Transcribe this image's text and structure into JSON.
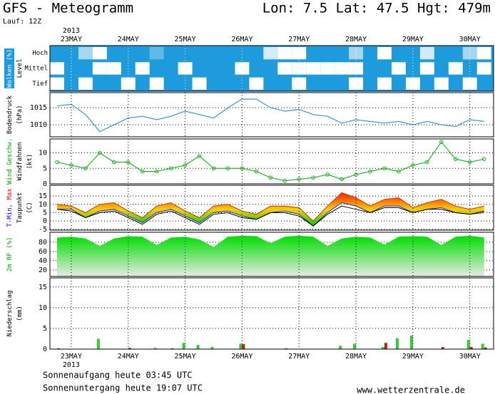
{
  "header": {
    "title": "GFS - Meteogramm",
    "location": "Lon: 7.5 Lat: 47.5 Hgt: 479m",
    "run": "Lauf: 12Z"
  },
  "footer": {
    "sunrise": "Sonnenaufgang heute 03:45 UTC",
    "sunset": "Sonnenuntergang heute 19:07 UTC",
    "source": "www.wetterzentrale.de"
  },
  "chart_data": [
    {
      "type": "heatmap",
      "year": "2013",
      "background": "#1e9bdc",
      "cell_color": "#ffffff",
      "ylabel": [
        [
          {
            "text": "Wolken (%)",
            "color": "#ffffff"
          }
        ],
        [
          {
            "text": "Level",
            "color": "#000000"
          }
        ]
      ],
      "categories": [
        "Hoch",
        "Mittel",
        "Tief"
      ],
      "x": [
        -6,
        0,
        6,
        12,
        18,
        24,
        30,
        36,
        42,
        48,
        54,
        60,
        66,
        72,
        78,
        84,
        90,
        96,
        102,
        108,
        114,
        120,
        126,
        132,
        138,
        144,
        150,
        156,
        162,
        168,
        174
      ],
      "xlim": [
        -9,
        178
      ],
      "xticks": [
        {
          "value": 0,
          "label": "23MAY"
        },
        {
          "value": 24,
          "label": "24MAY"
        },
        {
          "value": 48,
          "label": "25MAY"
        },
        {
          "value": 72,
          "label": "26MAY"
        },
        {
          "value": 96,
          "label": "27MAY"
        },
        {
          "value": 120,
          "label": "28MAY"
        },
        {
          "value": 144,
          "label": "29MAY"
        },
        {
          "value": 168,
          "label": "30MAY"
        }
      ],
      "series": [
        {
          "values": [
            0,
            0,
            60,
            100,
            0,
            0,
            0,
            30,
            0,
            0,
            0,
            0,
            0,
            0,
            0,
            80,
            100,
            100,
            0,
            0,
            0,
            60,
            0,
            100,
            0,
            0,
            80,
            0,
            0,
            60,
            100
          ]
        },
        {
          "values": [
            100,
            0,
            0,
            100,
            100,
            0,
            100,
            0,
            0,
            100,
            0,
            0,
            0,
            100,
            0,
            0,
            100,
            100,
            100,
            100,
            100,
            100,
            0,
            0,
            100,
            0,
            100,
            0,
            100,
            0,
            100
          ]
        },
        {
          "values": [
            100,
            0,
            100,
            0,
            0,
            100,
            0,
            100,
            0,
            0,
            100,
            0,
            0,
            0,
            100,
            0,
            0,
            100,
            0,
            0,
            0,
            100,
            0,
            100,
            0,
            100,
            0,
            100,
            0,
            100,
            0
          ]
        }
      ]
    },
    {
      "type": "line",
      "color": "#3399dd",
      "ylabel": [
        [
          {
            "text": "Bodendruck",
            "color": "#000000"
          }
        ],
        [
          {
            "text": "(hPa)",
            "color": "#000000"
          }
        ]
      ],
      "x": [
        -6,
        0,
        6,
        12,
        18,
        24,
        30,
        36,
        42,
        48,
        54,
        60,
        66,
        72,
        78,
        84,
        90,
        96,
        102,
        108,
        114,
        120,
        126,
        132,
        138,
        144,
        150,
        156,
        162,
        168,
        174
      ],
      "xlim": [
        -9,
        178
      ],
      "xticks": [
        0,
        24,
        48,
        72,
        96,
        120,
        144,
        168
      ],
      "ylim": [
        1006.5,
        1019.4
      ],
      "yticks": [
        1010,
        1015
      ],
      "values": [
        1015.5,
        1016,
        1013,
        1008,
        1010,
        1012,
        1012.5,
        1011.5,
        1012.5,
        1014,
        1013,
        1012,
        1015,
        1017.5,
        1017.5,
        1015,
        1014,
        1014.5,
        1013,
        1012.5,
        1010.5,
        1011.5,
        1011,
        1010.5,
        1011,
        1010,
        1011,
        1010,
        1009.5,
        1011.5,
        1011
      ]
    },
    {
      "type": "line",
      "color": "#22bb22",
      "markers": true,
      "ylabel": [
        [
          {
            "text": "Wind Geschw.",
            "color": "#00aa00"
          }
        ],
        [
          {
            "text": "Windfahnen",
            "color": "#000000"
          }
        ],
        [
          {
            "text": "(kt)",
            "color": "#000000"
          }
        ]
      ],
      "x": [
        -6,
        0,
        6,
        12,
        18,
        24,
        30,
        36,
        42,
        48,
        54,
        60,
        66,
        72,
        78,
        84,
        90,
        96,
        102,
        108,
        114,
        120,
        126,
        132,
        138,
        144,
        150,
        156,
        162,
        168,
        174
      ],
      "xlim": [
        -9,
        178
      ],
      "xticks": [
        0,
        24,
        48,
        72,
        96,
        120,
        144,
        168
      ],
      "ylim": [
        0,
        14.5
      ],
      "yticks": [
        0,
        5,
        10
      ],
      "values": [
        7,
        6,
        5,
        10,
        7,
        7,
        4,
        4,
        5,
        6,
        9,
        5,
        5,
        5,
        4,
        2,
        1,
        1.5,
        2,
        3,
        1.5,
        3,
        4,
        5,
        4,
        6,
        7,
        13.5,
        8,
        7,
        8
      ]
    },
    {
      "type": "band",
      "band_colors": [
        "#ff2200",
        "#ffcc00",
        "#00cc00"
      ],
      "ylabel": [
        [
          {
            "text": "T-Min,",
            "color": "#0000ff"
          },
          {
            "text": "Max",
            "color": "#ff0000"
          }
        ],
        [
          {
            "text": "Taupunkt",
            "color": "#000000"
          }
        ],
        [
          {
            "text": "(C)",
            "color": "#000000"
          }
        ]
      ],
      "x": [
        -6,
        0,
        6,
        12,
        18,
        24,
        30,
        36,
        42,
        48,
        54,
        60,
        66,
        72,
        78,
        84,
        90,
        96,
        102,
        108,
        114,
        120,
        126,
        132,
        138,
        144,
        150,
        156,
        162,
        168,
        174
      ],
      "xlim": [
        -9,
        178
      ],
      "xticks": [
        0,
        24,
        48,
        72,
        96,
        120,
        144,
        168
      ],
      "ylim": [
        -5.5,
        21.5
      ],
      "yticks": [
        -5,
        0,
        5,
        10,
        15
      ],
      "series": [
        {
          "color": "#cc3300",
          "values": [
            10,
            9,
            5,
            10,
            11,
            6,
            2,
            9,
            11,
            6,
            2,
            9,
            10,
            6,
            4,
            9,
            9,
            8,
            0,
            9,
            17,
            14,
            9,
            13,
            14,
            8,
            11,
            13,
            9,
            7,
            9
          ]
        },
        {
          "color": "#0033cc",
          "values": [
            7,
            7,
            2,
            6,
            7,
            3,
            -1,
            5,
            7,
            3,
            -1,
            5,
            6,
            3,
            1,
            5,
            6,
            4,
            -3,
            5,
            11,
            9,
            5,
            9,
            9,
            5,
            7,
            8,
            5,
            4,
            5
          ]
        },
        {
          "color": "#000000",
          "values": [
            7,
            6,
            2,
            5,
            6,
            2,
            -2,
            4,
            6,
            2,
            -2,
            4,
            5,
            2,
            1,
            5,
            5,
            3,
            -3,
            4,
            9,
            7,
            5,
            8,
            8,
            5,
            7,
            7,
            5,
            4,
            6
          ]
        }
      ]
    },
    {
      "type": "area",
      "fill_colors": [
        "#00dd00",
        "#e6ebe6"
      ],
      "ylabel": [
        [
          {
            "text": "2m RF (%)",
            "color": "#00aa00"
          }
        ]
      ],
      "x": [
        -6,
        0,
        6,
        12,
        18,
        24,
        30,
        36,
        42,
        48,
        54,
        60,
        66,
        72,
        78,
        84,
        90,
        96,
        102,
        108,
        114,
        120,
        126,
        132,
        138,
        144,
        150,
        156,
        162,
        168,
        174
      ],
      "xlim": [
        -9,
        178
      ],
      "xticks": [
        0,
        24,
        48,
        72,
        96,
        120,
        144,
        168
      ],
      "ylim": [
        6,
        101.5
      ],
      "yticks": [
        20,
        40,
        60,
        80
      ],
      "values": [
        90,
        92,
        88,
        72,
        88,
        93,
        92,
        74,
        90,
        92,
        86,
        70,
        92,
        94,
        93,
        78,
        92,
        94,
        92,
        72,
        88,
        92,
        90,
        75,
        92,
        93,
        92,
        74,
        92,
        94,
        90
      ]
    },
    {
      "type": "bar",
      "year": "2013",
      "ylabel": [
        [
          {
            "text": "Niederschlag",
            "color": "#000000"
          }
        ],
        [
          {
            "text": "(mm)",
            "color": "#000000"
          }
        ]
      ],
      "x": [
        -6,
        0,
        6,
        12,
        18,
        24,
        30,
        36,
        42,
        48,
        54,
        60,
        66,
        72,
        78,
        84,
        90,
        96,
        102,
        108,
        114,
        120,
        126,
        132,
        138,
        144,
        150,
        156,
        162,
        168,
        174
      ],
      "xlim": [
        -9,
        178
      ],
      "xticks": [
        {
          "value": 0,
          "label": "23MAY"
        },
        {
          "value": 24,
          "label": "24MAY"
        },
        {
          "value": 48,
          "label": "25MAY"
        },
        {
          "value": 72,
          "label": "26MAY"
        },
        {
          "value": 96,
          "label": "27MAY"
        },
        {
          "value": 120,
          "label": "28MAY"
        },
        {
          "value": 144,
          "label": "29MAY"
        },
        {
          "value": 168,
          "label": "30MAY"
        }
      ],
      "ylim": [
        0,
        17.2
      ],
      "yticks": [
        0,
        5,
        10,
        15
      ],
      "series": [
        {
          "color": "#33cc33",
          "values": [
            0,
            0,
            0,
            2.5,
            0,
            0,
            0,
            0.3,
            0,
            1.5,
            1,
            0.5,
            0,
            1.3,
            0,
            0,
            0,
            0,
            0,
            0,
            0.8,
            1.3,
            0,
            0.5,
            2.6,
            3.3,
            0,
            0,
            0,
            2.2,
            1.3
          ]
        },
        {
          "color": "#cc2200",
          "values": [
            0.2,
            0,
            0,
            0,
            0,
            0.3,
            0,
            0,
            0.2,
            0,
            0,
            0,
            0,
            1.2,
            0,
            0,
            0.2,
            0.1,
            0,
            0,
            0,
            0,
            0,
            1.5,
            0,
            0,
            0,
            0.5,
            0,
            0.5,
            0.4
          ]
        }
      ]
    }
  ]
}
